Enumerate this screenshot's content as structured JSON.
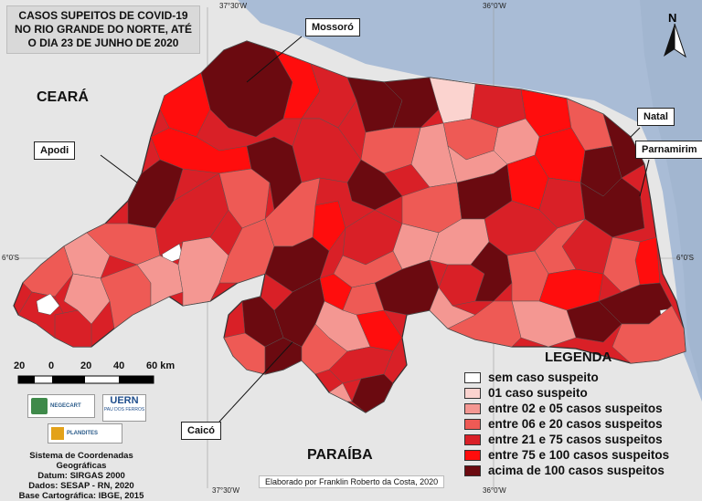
{
  "title": "CASOS SUPEITOS DE COVID-19 NO RIO GRANDE DO NORTE, ATÉ O DIA 23 DE JUNHO DE 2020",
  "north_label": "N",
  "coords": {
    "top_left": "37°30'W",
    "top_right": "36°0'W",
    "bottom_left": "37°30'W",
    "bottom_right": "36°0'W",
    "left_lat": "6°0'S",
    "right_lat": "6°0'S"
  },
  "regions": {
    "ceara": "CEARÁ",
    "paraiba": "PARAÍBA"
  },
  "callouts": {
    "mossoro": "Mossoró",
    "apodi": "Apodi",
    "natal": "Natal",
    "parnamirim": "Parnamirim",
    "caico": "Caicó"
  },
  "scale": {
    "labels": [
      "20",
      "0",
      "20",
      "40",
      "60 km"
    ]
  },
  "logos": {
    "negecart": "NEGECART",
    "uern": "UERN",
    "uern_sub": "PAU DOS FERROS",
    "plandites": "PLANDITES"
  },
  "legend": {
    "title": "LEGENDA",
    "items": [
      {
        "label": "sem caso suspeito",
        "color": "#ffffff"
      },
      {
        "label": "01 caso suspeito",
        "color": "#fbd3cf"
      },
      {
        "label": "entre 02 e 05 casos suspeitos",
        "color": "#f49792"
      },
      {
        "label": "entre 06 e 20 casos suspeitos",
        "color": "#ee5a55"
      },
      {
        "label": "entre 21 e 75 casos suspeitos",
        "color": "#d92027"
      },
      {
        "label": "entre 75 e 100 casos suspeitos",
        "color": "#ff0d0d"
      },
      {
        "label": "acima de 100 casos suspeitos",
        "color": "#6b0a10"
      }
    ]
  },
  "info_lines": [
    "Sistema de Coordenadas Geográficas",
    "Datum: SIRGAS 2000",
    "Dados: SESAP - RN, 2020",
    "Base Cartográfica: IBGE, 2015"
  ],
  "credit": "Elaborado por Franklin Roberto da Costa, 2020",
  "colors": {
    "sea": "#a9bcd6",
    "land": "#e6e6e6",
    "outline": "#333333"
  }
}
